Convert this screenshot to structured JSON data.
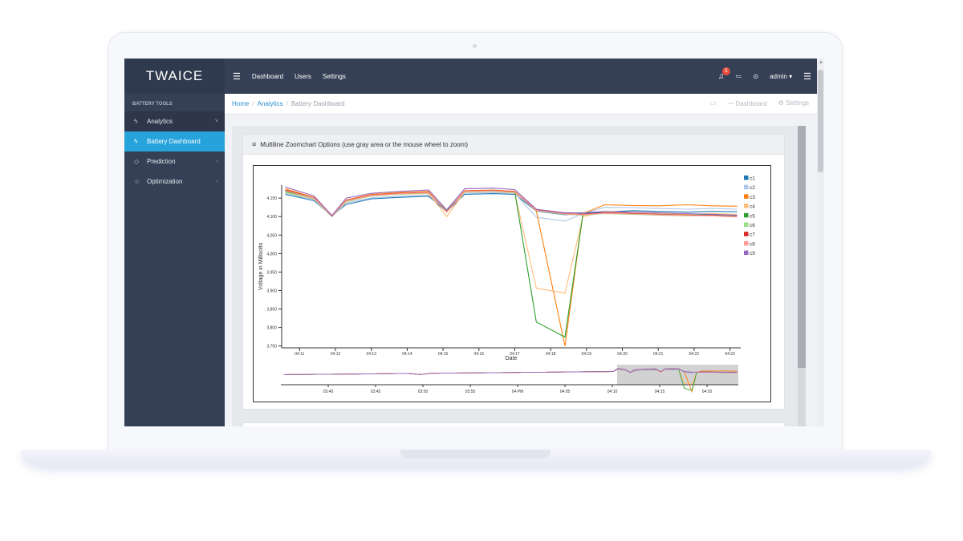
{
  "app": {
    "brand": "TWAICE"
  },
  "sidebar": {
    "section_title": "BATTERY TOOLS",
    "items": [
      {
        "label": "Analytics",
        "icon": "bolt-icon",
        "arrow": "chevron-down-icon"
      },
      {
        "label": "Battery Dashboard",
        "icon": "bolt-icon"
      },
      {
        "label": "Prediction",
        "icon": "tag-icon",
        "arrow": "chevron-left-icon"
      },
      {
        "label": "Optimization",
        "icon": "star-icon",
        "arrow": "chevron-left-icon"
      }
    ]
  },
  "topbar": {
    "nav": [
      "Dashboard",
      "Users",
      "Settings"
    ],
    "notifications_count": "5",
    "user": "admin"
  },
  "breadcrumb": {
    "items": [
      "Home",
      "Analytics",
      "Battery Dashboard"
    ],
    "right": [
      "Dashboard",
      "Settings"
    ]
  },
  "card": {
    "title": "Multiline Zoomchart Options (use gray area or the mouse wheel to zoom)"
  },
  "colors": {
    "sidebar_bg": "#354056",
    "active_item": "#27a3db",
    "badge": "#e74c3c"
  },
  "chart_data": {
    "type": "line",
    "title": "",
    "xlabel": "Date",
    "ylabel": "Voltage in Millivolts",
    "ylim": [
      3745,
      4185
    ],
    "yticks": [
      3750,
      3800,
      3850,
      3900,
      3950,
      4000,
      4050,
      4100,
      4150
    ],
    "ytick_labels": [
      "3,750",
      "3,800",
      "3,850",
      "3,900",
      "3,950",
      "4,000",
      "4,050",
      "4,100",
      "4,150"
    ],
    "x_minutes_range": [
      250.5,
      263.3
    ],
    "x_ticks": [
      {
        "m": 251,
        "label": "04:11"
      },
      {
        "m": 252,
        "label": "04:12"
      },
      {
        "m": 253,
        "label": "04:13"
      },
      {
        "m": 254,
        "label": "04:14"
      },
      {
        "m": 255,
        "label": "04:15"
      },
      {
        "m": 256,
        "label": "04:16"
      },
      {
        "m": 257,
        "label": "04:17"
      },
      {
        "m": 258,
        "label": "04:18"
      },
      {
        "m": 259,
        "label": "04:19"
      },
      {
        "m": 260,
        "label": "04:20"
      },
      {
        "m": 261,
        "label": "04:21"
      },
      {
        "m": 262,
        "label": "04:22"
      },
      {
        "m": 263,
        "label": "04:23"
      }
    ],
    "x": [
      250.6,
      251.4,
      251.9,
      252.3,
      253.0,
      253.8,
      254.6,
      255.1,
      255.6,
      256.4,
      257.0,
      257.6,
      258.4,
      258.9,
      259.5,
      260.3,
      261.0,
      261.8,
      262.5,
      263.2
    ],
    "series": [
      {
        "name": "c1",
        "color": "#1f77b4",
        "values": [
          4160,
          4143,
          4102,
          4133,
          4148,
          4152,
          4155,
          4113,
          4160,
          4162,
          4160,
          4115,
          4105,
          4108,
          4112,
          4116,
          4114,
          4112,
          4114,
          4113
        ]
      },
      {
        "name": "c2",
        "color": "#aec7e8",
        "values": [
          4163,
          4146,
          4100,
          4137,
          4151,
          4155,
          4158,
          4116,
          4163,
          4165,
          4163,
          4098,
          4088,
          4108,
          4125,
          4124,
          4122,
          4120,
          4122,
          4120
        ]
      },
      {
        "name": "c3",
        "color": "#ff7f0e",
        "values": [
          4175,
          4152,
          4102,
          4145,
          4160,
          4165,
          4168,
          4112,
          4170,
          4172,
          4168,
          4115,
          3750,
          4108,
          4132,
          4130,
          4129,
          4132,
          4129,
          4128
        ]
      },
      {
        "name": "c4",
        "color": "#ffbb78",
        "values": [
          4165,
          4148,
          4101,
          4140,
          4156,
          4160,
          4162,
          4100,
          4166,
          4168,
          4164,
          3906,
          3893,
          4100,
          4112,
          4110,
          4108,
          4106,
          4108,
          4106
        ]
      },
      {
        "name": "c5",
        "color": "#2ca02c",
        "values": [
          4168,
          4150,
          4101,
          4142,
          4157,
          4162,
          4165,
          4115,
          4168,
          4170,
          4166,
          3815,
          3774,
          4106,
          4110,
          4108,
          4106,
          4104,
          4105,
          4103
        ]
      },
      {
        "name": "c6",
        "color": "#98df8a",
        "values": [
          4166,
          4149,
          4100,
          4141,
          4156,
          4161,
          4164,
          4114,
          4167,
          4169,
          4165,
          4116,
          4106,
          4104,
          4108,
          4106,
          4104,
          4102,
          4103,
          4102
        ]
      },
      {
        "name": "c7",
        "color": "#d62728",
        "values": [
          4172,
          4151,
          4101,
          4144,
          4158,
          4163,
          4166,
          4113,
          4169,
          4171,
          4167,
          4118,
          4108,
          4106,
          4110,
          4108,
          4106,
          4104,
          4103,
          4100
        ]
      },
      {
        "name": "c8",
        "color": "#ff9896",
        "values": [
          4170,
          4150,
          4102,
          4143,
          4157,
          4162,
          4165,
          4112,
          4168,
          4170,
          4166,
          4117,
          4107,
          4105,
          4109,
          4107,
          4105,
          4103,
          4102,
          4099
        ]
      },
      {
        "name": "c9",
        "color": "#9467bd",
        "values": [
          4180,
          4156,
          4103,
          4150,
          4163,
          4168,
          4172,
          4118,
          4175,
          4177,
          4173,
          4120,
          4110,
          4110,
          4114,
          4112,
          4110,
          4108,
          4106,
          4104
        ]
      }
    ],
    "overview": {
      "x_minutes_range": [
        215,
        263.3
      ],
      "x_ticks": [
        {
          "m": 220,
          "label": "03:40"
        },
        {
          "m": 225,
          "label": "03:45"
        },
        {
          "m": 230,
          "label": "03:50"
        },
        {
          "m": 235,
          "label": "03:55"
        },
        {
          "m": 240,
          "label": "04 PM"
        },
        {
          "m": 245,
          "label": "04:05"
        },
        {
          "m": 250,
          "label": "04:10"
        },
        {
          "m": 255,
          "label": "04:15"
        },
        {
          "m": 260,
          "label": "04:20"
        }
      ],
      "brush_minutes": [
        250.5,
        263.3
      ]
    }
  }
}
